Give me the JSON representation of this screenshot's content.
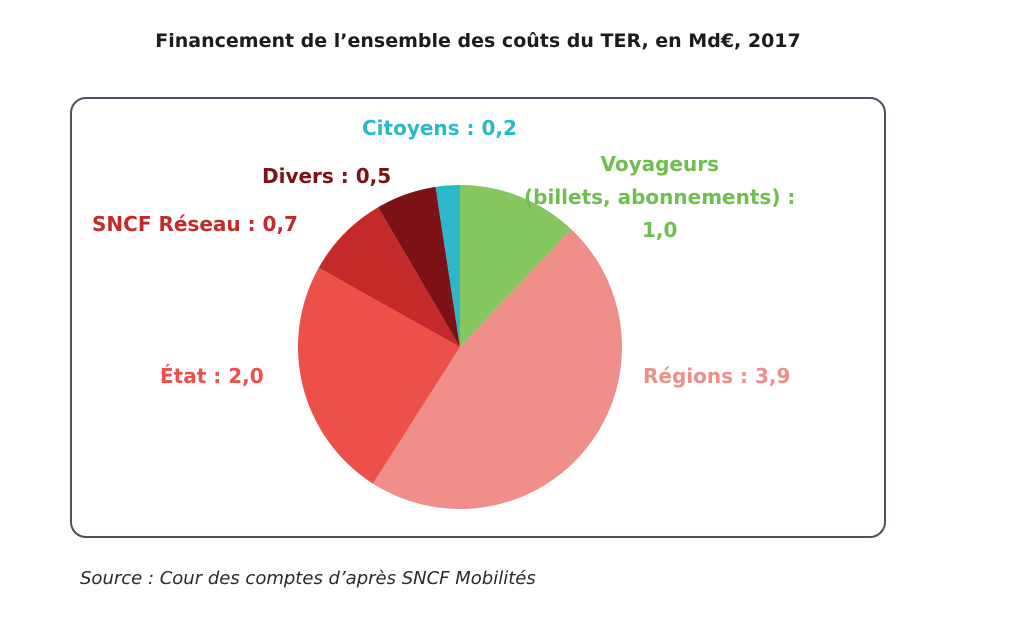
{
  "chart_data": {
    "type": "pie",
    "title": "Financement de l’ensemble des coûts du TER, en Md€, 2017",
    "start": "top",
    "direction": "clockwise",
    "slices": [
      {
        "key": "voyageurs",
        "label_lines": [
          "Voyageurs",
          "(billets, abonnements) :",
          "1,0"
        ],
        "value": 1.0,
        "color": "#86c65f",
        "label_color": "#6fbe4f"
      },
      {
        "key": "regions",
        "label": "Régions : 3,9",
        "value": 3.9,
        "color": "#f08e89",
        "label_color": "#f08e89"
      },
      {
        "key": "etat",
        "label": "État : 2,0",
        "value": 2.0,
        "color": "#ec5049",
        "label_color": "#ec5049"
      },
      {
        "key": "sncf-reseau",
        "label": "SNCF Réseau : 0,7",
        "value": 0.7,
        "color": "#c42a29",
        "label_color": "#c42a29"
      },
      {
        "key": "divers",
        "label": "Divers : 0,5",
        "value": 0.5,
        "color": "#7c1116",
        "label_color": "#7c1116"
      },
      {
        "key": "citoyens",
        "label": "Citoyens : 0,2",
        "value": 0.2,
        "color": "#2bb8ca",
        "label_color": "#2bb8ca"
      }
    ],
    "unit": "Md€"
  },
  "source": "Source : Cour des comptes d’après SNCF Mobilités"
}
